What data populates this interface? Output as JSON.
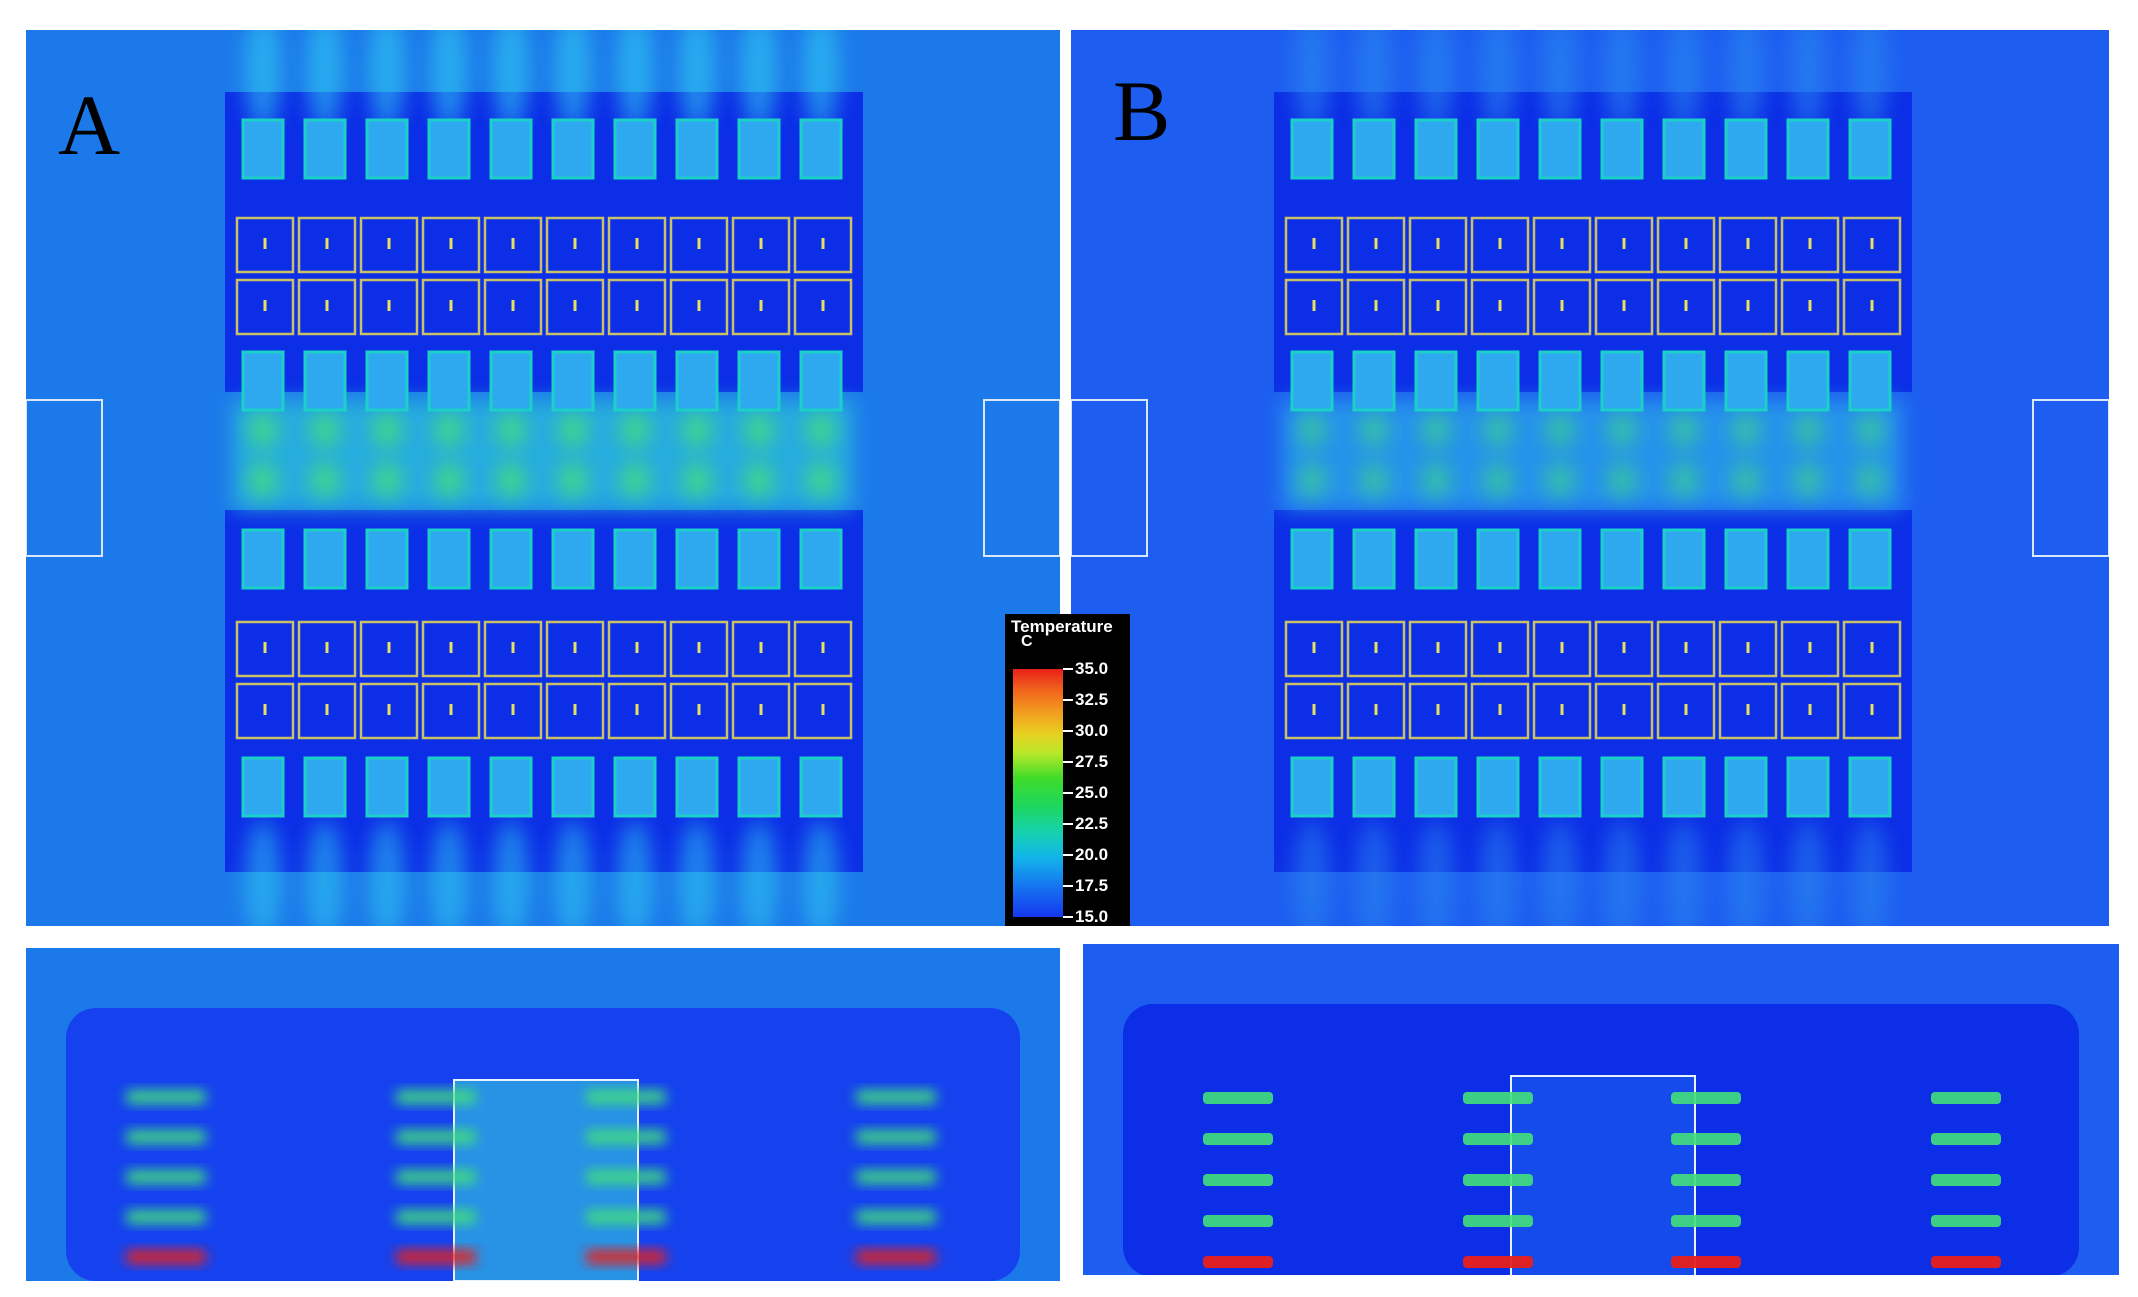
{
  "panels": {
    "a": {
      "letter": "A"
    },
    "b": {
      "letter": "B"
    }
  },
  "legend": {
    "title": "Temperature",
    "unit": "C",
    "ticks": [
      "35.0",
      "32.5",
      "30.0",
      "27.5",
      "25.0",
      "22.5",
      "20.0",
      "17.5",
      "15.0"
    ]
  },
  "colors": {
    "background_field": "#1c79ea",
    "cold_block": "#0c2ee6",
    "server_face": "#2ea8ee",
    "hot_core": "#42e07a",
    "frame_line": "#c9c06a",
    "hot_red": "#e8201a"
  }
}
